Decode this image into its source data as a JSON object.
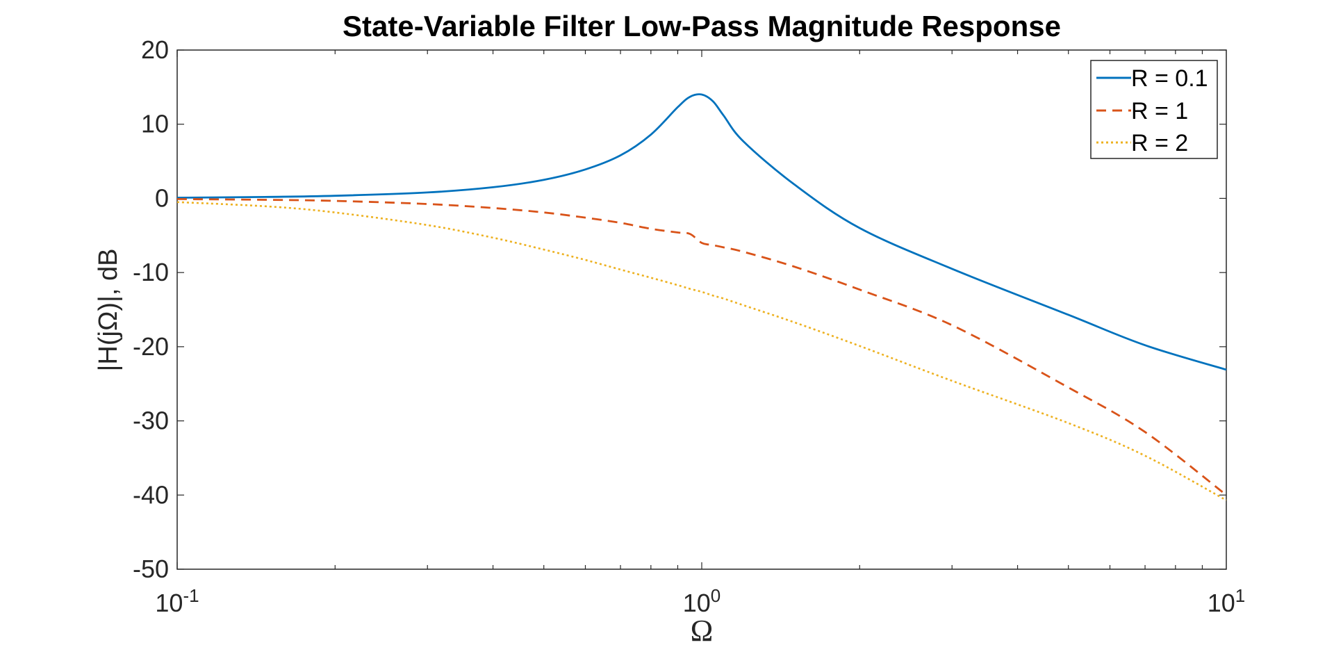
{
  "chart_data": {
    "type": "line",
    "title": "State-Variable Filter Low-Pass Magnitude Response",
    "xlabel": "Ω",
    "ylabel": "|H(jΩ)|, dB",
    "xscale": "log",
    "xlim": [
      0.1,
      10
    ],
    "ylim": [
      -50,
      20
    ],
    "yticks": [
      20,
      10,
      0,
      -10,
      -20,
      -30,
      -40,
      -50
    ],
    "xtick_labels": [
      {
        "base": "10",
        "exp": "-1"
      },
      {
        "base": "10",
        "exp": "0"
      },
      {
        "base": "10",
        "exp": "1"
      }
    ],
    "grid": false,
    "legend_position": "top-right",
    "x": [
      0.1,
      0.15,
      0.2,
      0.3,
      0.4,
      0.5,
      0.6,
      0.7,
      0.8,
      0.9,
      0.95,
      1.0,
      1.05,
      1.1,
      1.2,
      1.5,
      2,
      3,
      5,
      7,
      10
    ],
    "series": [
      {
        "name": "R = 0.1",
        "color": "#0072BD",
        "dash": "solid",
        "values": [
          0.09,
          0.2,
          0.35,
          0.8,
          1.5,
          2.5,
          3.9,
          5.8,
          8.6,
          12.3,
          13.7,
          14.0,
          13.1,
          11.2,
          7.7,
          1.9,
          -4.0,
          -9.5,
          -15.7,
          -19.8,
          -23.1
        ]
      },
      {
        "name": "R = 1",
        "color": "#D95319",
        "dash": "dashed",
        "values": [
          -0.09,
          -0.2,
          -0.34,
          -0.76,
          -1.3,
          -1.9,
          -2.6,
          -3.3,
          -4.1,
          -4.6,
          -4.8,
          -6.0,
          -6.3,
          -6.6,
          -7.2,
          -9.2,
          -12.3,
          -17.1,
          -25.5,
          -31.5,
          -40.0
        ]
      },
      {
        "name": "R = 2",
        "color": "#EDB120",
        "dash": "dotted",
        "values": [
          -0.5,
          -1.1,
          -1.9,
          -3.6,
          -5.3,
          -6.9,
          -8.3,
          -9.6,
          -10.7,
          -11.7,
          -12.2,
          -12.6,
          -13.1,
          -13.5,
          -14.4,
          -16.7,
          -19.9,
          -24.6,
          -30.3,
          -34.7,
          -40.7
        ]
      }
    ]
  }
}
